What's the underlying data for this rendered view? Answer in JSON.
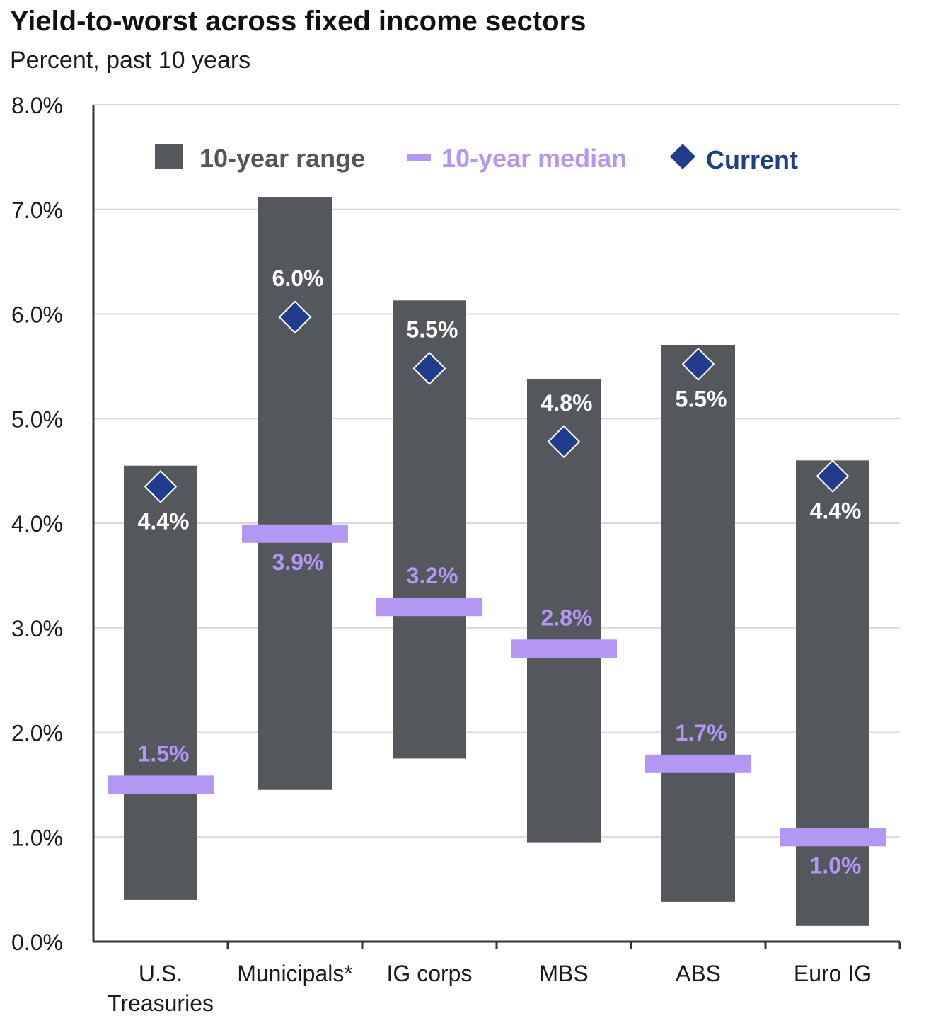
{
  "header": {
    "title": "Yield-to-worst across fixed income sectors",
    "subtitle": "Percent, past 10 years"
  },
  "chart_data": {
    "type": "range-bar",
    "title": "Yield-to-worst across fixed income sectors",
    "subtitle": "Percent, past 10 years",
    "categories": [
      "U.S. Treasuries",
      "Municipals*",
      "IG corps",
      "MBS",
      "ABS",
      "Euro IG"
    ],
    "category_lines": [
      [
        "U.S.",
        "Treasuries"
      ],
      [
        "Municipals*"
      ],
      [
        "IG corps"
      ],
      [
        "MBS"
      ],
      [
        "ABS"
      ],
      [
        "Euro IG"
      ]
    ],
    "series": [
      {
        "name": "10-year range",
        "low": [
          0.4,
          1.45,
          1.75,
          0.95,
          0.38,
          0.15
        ],
        "high": [
          4.55,
          7.12,
          6.13,
          5.38,
          5.7,
          4.6
        ]
      },
      {
        "name": "10-year median",
        "values": [
          1.5,
          3.9,
          3.2,
          2.8,
          1.7,
          1.0
        ],
        "labels": [
          "1.5%",
          "3.9%",
          "3.2%",
          "2.8%",
          "1.7%",
          "1.0%"
        ]
      },
      {
        "name": "Current",
        "values": [
          4.35,
          5.97,
          5.48,
          4.78,
          5.52,
          4.45
        ],
        "labels": [
          "4.4%",
          "6.0%",
          "5.5%",
          "4.8%",
          "5.5%",
          "4.4%"
        ]
      }
    ],
    "current_label_position": [
      "below",
      "above",
      "above",
      "above",
      "below",
      "below"
    ],
    "median_label_position": [
      "above",
      "below",
      "above",
      "above",
      "above",
      "below"
    ],
    "ylim": [
      0,
      8
    ],
    "y_ticks": [
      0,
      1,
      2,
      3,
      4,
      5,
      6,
      7,
      8
    ],
    "y_tick_labels": [
      "0.0%",
      "1.0%",
      "2.0%",
      "3.0%",
      "4.0%",
      "5.0%",
      "6.0%",
      "7.0%",
      "8.0%"
    ],
    "grid": true,
    "legend_position": "top-center",
    "colors": {
      "range": "#54575b",
      "median": "#b497f4",
      "current": "#1f3d8c",
      "grid": "#d9d9d9",
      "axis": "#333333"
    }
  }
}
